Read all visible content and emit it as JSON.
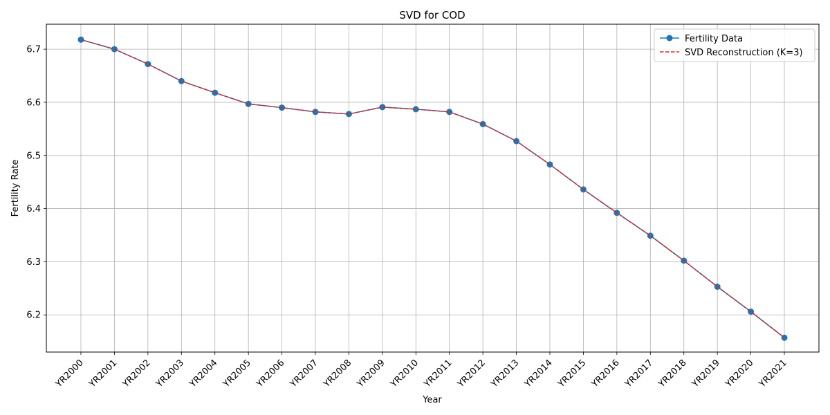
{
  "chart_data": {
    "type": "line",
    "title": "SVD for COD",
    "xlabel": "Year",
    "ylabel": "Fertility Rate",
    "categories": [
      "YR2000",
      "YR2001",
      "YR2002",
      "YR2003",
      "YR2004",
      "YR2005",
      "YR2006",
      "YR2007",
      "YR2008",
      "YR2009",
      "YR2010",
      "YR2011",
      "YR2012",
      "YR2013",
      "YR2014",
      "YR2015",
      "YR2016",
      "YR2017",
      "YR2018",
      "YR2019",
      "YR2020",
      "YR2021"
    ],
    "yticks": [
      6.2,
      6.3,
      6.4,
      6.5,
      6.6,
      6.7
    ],
    "ylim": [
      6.13,
      6.747
    ],
    "grid": true,
    "legend_position": "upper-right",
    "series": [
      {
        "name": "Fertility Data",
        "color": "#1f77b4",
        "style": "solid-with-markers",
        "values": [
          6.718,
          6.7,
          6.672,
          6.64,
          6.618,
          6.597,
          6.59,
          6.582,
          6.578,
          6.591,
          6.587,
          6.582,
          6.559,
          6.527,
          6.483,
          6.436,
          6.392,
          6.349,
          6.302,
          6.253,
          6.206,
          6.157
        ]
      },
      {
        "name": "SVD Reconstruction (K=3)",
        "color": "#d62728",
        "style": "dashed",
        "values": [
          6.718,
          6.7,
          6.672,
          6.64,
          6.618,
          6.597,
          6.59,
          6.582,
          6.578,
          6.591,
          6.587,
          6.582,
          6.559,
          6.527,
          6.483,
          6.436,
          6.392,
          6.349,
          6.302,
          6.253,
          6.206,
          6.157
        ]
      }
    ]
  }
}
